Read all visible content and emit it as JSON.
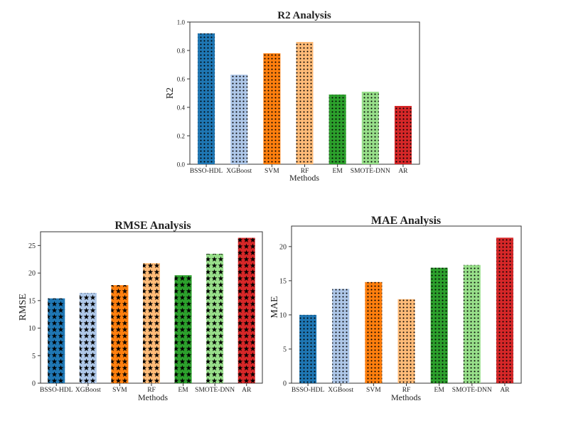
{
  "chart_data": [
    {
      "id": "r2",
      "type": "bar",
      "title": "R2 Analysis",
      "xlabel": "Methods",
      "ylabel": "R2",
      "categories": [
        "BSSO-HDL",
        "XGBoost",
        "SVM",
        "RF",
        "EM",
        "SMOTE-DNN",
        "AR"
      ],
      "values": [
        0.92,
        0.63,
        0.78,
        0.86,
        0.49,
        0.51,
        0.41
      ],
      "ylim": [
        0,
        1.0
      ],
      "yticks": [
        "0.0",
        "0.2",
        "0.4",
        "0.6",
        "0.8",
        "1.0"
      ],
      "grid": false,
      "hatch": "dots"
    },
    {
      "id": "rmse",
      "type": "bar",
      "title": "RMSE Analysis",
      "xlabel": "Methods",
      "ylabel": "RMSE",
      "categories": [
        "BSSO-HDL",
        "XGBoost",
        "SVM",
        "RF",
        "EM",
        "SMOTE-DNN",
        "AR"
      ],
      "values": [
        15.4,
        16.4,
        17.8,
        21.8,
        19.6,
        23.5,
        26.4
      ],
      "ylim": [
        0,
        27.5
      ],
      "yticks": [
        "0",
        "5",
        "10",
        "15",
        "20",
        "25"
      ],
      "grid": false,
      "hatch": "stars"
    },
    {
      "id": "mae",
      "type": "bar",
      "title": "MAE Analysis",
      "xlabel": "Methods",
      "ylabel": "MAE",
      "categories": [
        "BSSO-HDL",
        "XGBoost",
        "SVM",
        "RF",
        "EM",
        "SMOTE-DNN",
        "AR"
      ],
      "values": [
        10.0,
        13.8,
        14.8,
        12.3,
        16.9,
        17.3,
        21.3
      ],
      "ylim": [
        0,
        23.0
      ],
      "yticks": [
        "0",
        "5",
        "10",
        "15",
        "20"
      ],
      "grid": false,
      "hatch": "dots"
    }
  ],
  "colors": {
    "bars": [
      "#1f77b4",
      "#aec7e8",
      "#ff7f0e",
      "#ffbb78",
      "#2ca02c",
      "#98df8a",
      "#d62728"
    ],
    "hatch": "#000000"
  }
}
